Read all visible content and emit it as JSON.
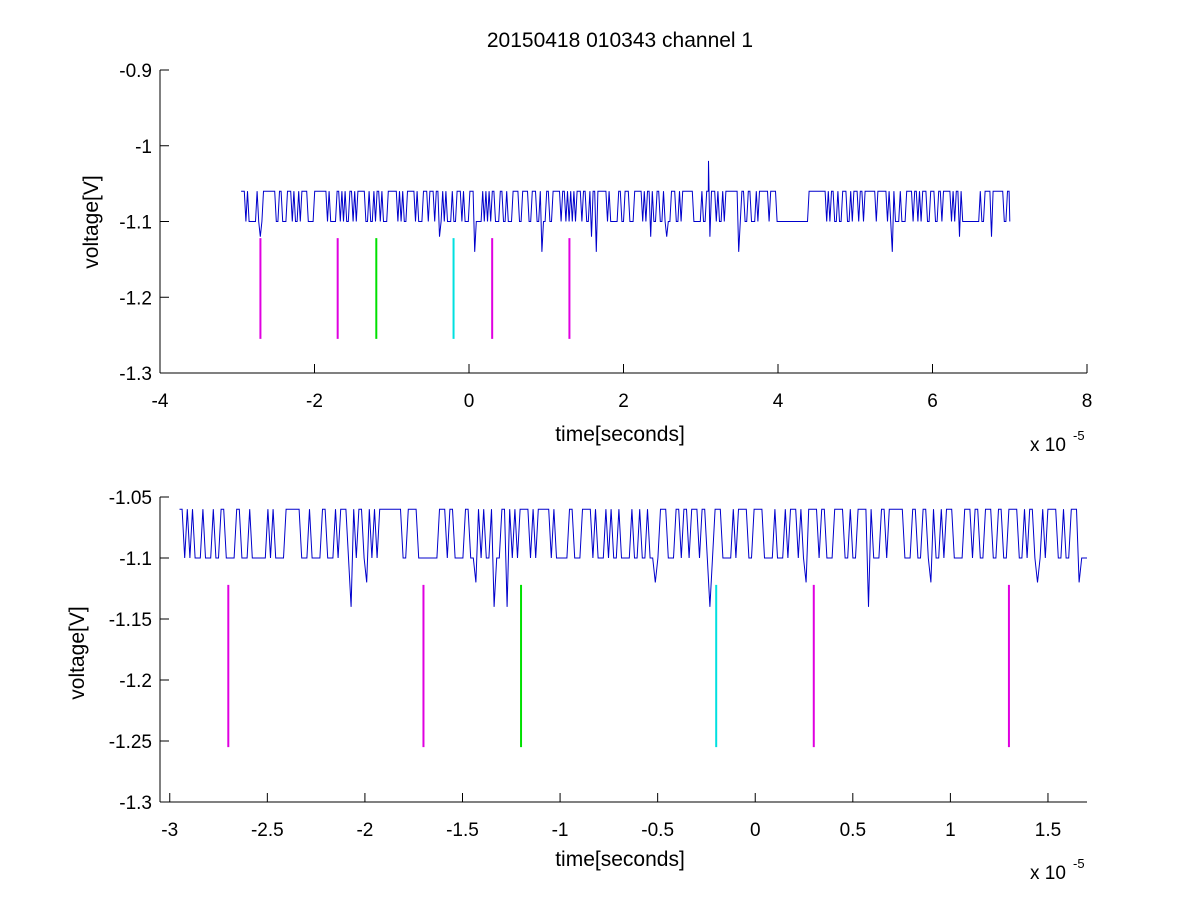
{
  "chart_data": [
    {
      "type": "line",
      "title": "20150418 010343 channel 1",
      "xlabel": "time[seconds]",
      "ylabel": "voltage[V]",
      "x_multiplier": "x 10",
      "x_multiplier_exp": "-5",
      "xlim": [
        -4,
        8
      ],
      "ylim": [
        -1.3,
        -0.9
      ],
      "xticks": [
        -4,
        -2,
        0,
        2,
        4,
        6,
        8
      ],
      "xtick_labels": [
        "-4",
        "-2",
        "0",
        "2",
        "4",
        "6",
        "8"
      ],
      "yticks": [
        -1.3,
        -1.2,
        -1.1,
        -1.0,
        -0.9
      ],
      "ytick_labels": [
        "-1.3",
        "-1.2",
        "-1.1",
        "-1",
        "-0.9"
      ],
      "signal": {
        "x_start": -2.95,
        "x_end": 7.0,
        "baseline": -1.1,
        "high": -1.06,
        "low": -1.14,
        "spike_x": 3.1,
        "spike_y": -1.02,
        "color": "#0000cc"
      },
      "markers": [
        {
          "x": -2.7,
          "y_top": -1.122,
          "y_bottom": -1.255,
          "color": "#e000e0"
        },
        {
          "x": -1.7,
          "y_top": -1.122,
          "y_bottom": -1.255,
          "color": "#e000e0"
        },
        {
          "x": -1.2,
          "y_top": -1.122,
          "y_bottom": -1.255,
          "color": "#00e000"
        },
        {
          "x": -0.2,
          "y_top": -1.122,
          "y_bottom": -1.255,
          "color": "#00e0e0"
        },
        {
          "x": 0.3,
          "y_top": -1.122,
          "y_bottom": -1.255,
          "color": "#e000e0"
        },
        {
          "x": 1.3,
          "y_top": -1.122,
          "y_bottom": -1.255,
          "color": "#e000e0"
        }
      ]
    },
    {
      "type": "line",
      "title": "",
      "xlabel": "time[seconds]",
      "ylabel": "voltage[V]",
      "x_multiplier": "x 10",
      "x_multiplier_exp": "-5",
      "xlim": [
        -3.05,
        1.7
      ],
      "ylim": [
        -1.3,
        -1.05
      ],
      "xticks": [
        -3,
        -2.5,
        -2,
        -1.5,
        -1,
        -0.5,
        0,
        0.5,
        1,
        1.5
      ],
      "xtick_labels": [
        "-3",
        "-2.5",
        "-2",
        "-1.5",
        "-1",
        "-0.5",
        "0",
        "0.5",
        "1",
        "1.5"
      ],
      "yticks": [
        -1.3,
        -1.25,
        -1.2,
        -1.15,
        -1.1,
        -1.05
      ],
      "ytick_labels": [
        "-1.3",
        "-1.25",
        "-1.2",
        "-1.15",
        "-1.1",
        "-1.05"
      ],
      "signal": {
        "x_start": -2.95,
        "x_end": 1.7,
        "baseline": -1.1,
        "high": -1.06,
        "low": -1.14,
        "color": "#0000cc"
      },
      "markers": [
        {
          "x": -2.7,
          "y_top": -1.122,
          "y_bottom": -1.255,
          "color": "#e000e0"
        },
        {
          "x": -1.7,
          "y_top": -1.122,
          "y_bottom": -1.255,
          "color": "#e000e0"
        },
        {
          "x": -1.2,
          "y_top": -1.122,
          "y_bottom": -1.255,
          "color": "#00e000"
        },
        {
          "x": -0.2,
          "y_top": -1.122,
          "y_bottom": -1.255,
          "color": "#00e0e0"
        },
        {
          "x": 0.3,
          "y_top": -1.122,
          "y_bottom": -1.255,
          "color": "#e000e0"
        },
        {
          "x": 1.3,
          "y_top": -1.122,
          "y_bottom": -1.255,
          "color": "#e000e0"
        }
      ]
    }
  ]
}
